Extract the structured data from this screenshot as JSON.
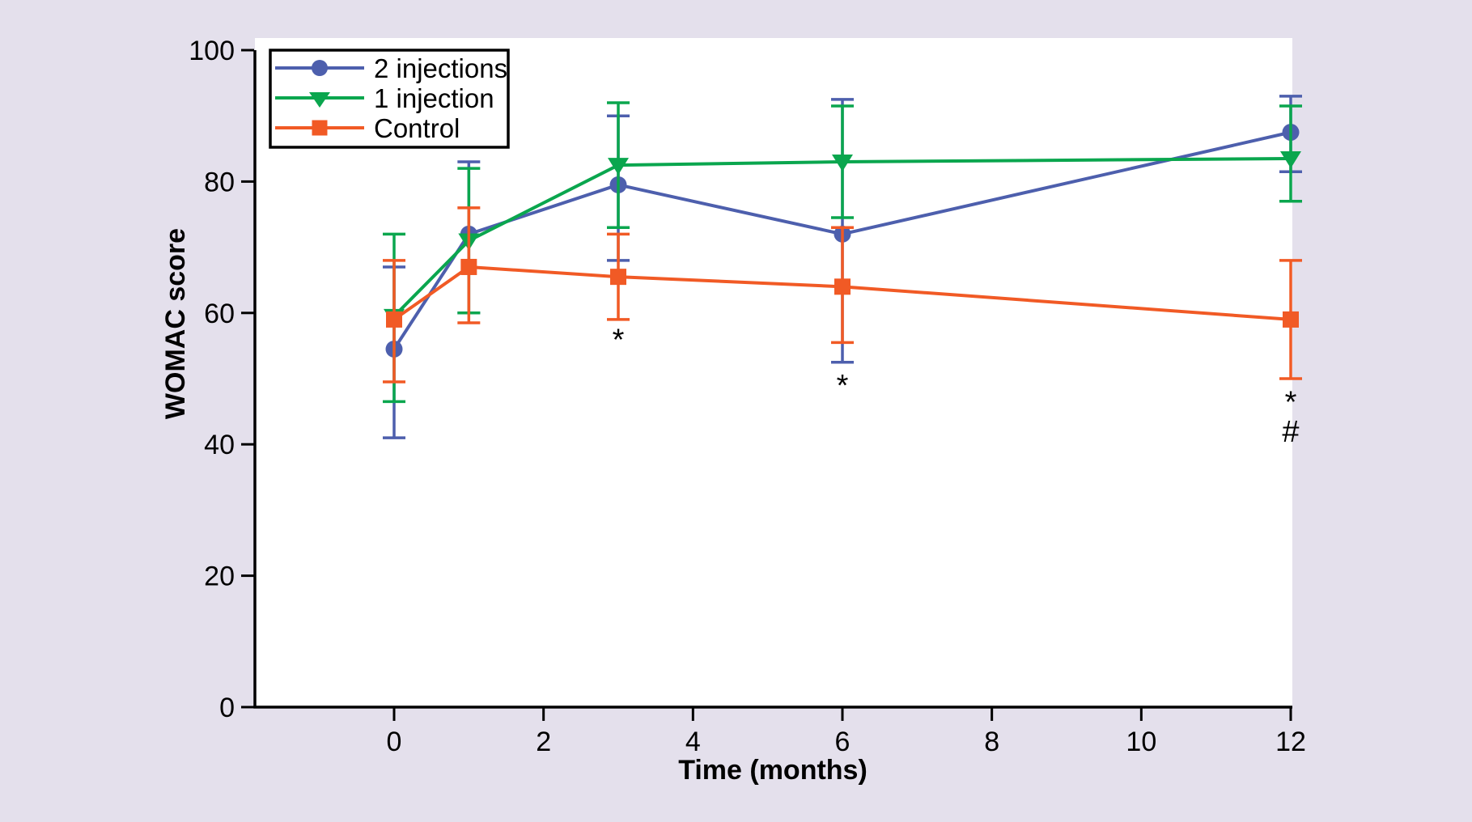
{
  "figure": {
    "background_color": "#e4e0ec",
    "plot_background": "#ffffff",
    "axis_color": "#000000",
    "legend_border_color": "#000000"
  },
  "chart_data": {
    "type": "line",
    "title": "",
    "xlabel": "Time (months)",
    "ylabel": "WOMAC score",
    "x": [
      0,
      1,
      3,
      6,
      12
    ],
    "x_ticks": [
      0,
      2,
      4,
      6,
      8,
      10,
      12
    ],
    "y_ticks": [
      0,
      20,
      40,
      60,
      80,
      100
    ],
    "xlim_months": [
      0,
      12
    ],
    "ylim": [
      0,
      100
    ],
    "grid": false,
    "legend_position": "top-left",
    "error_bars": true,
    "series": [
      {
        "name": "2 injections",
        "color": "#4d5fad",
        "marker": "circle",
        "values": [
          54.5,
          72,
          79.5,
          72,
          87.5
        ],
        "err_upper": [
          67,
          83,
          90,
          92.5,
          93
        ],
        "err_lower": [
          41,
          60,
          68,
          52.5,
          81.5
        ]
      },
      {
        "name": "1 injection",
        "color": "#0aa64e",
        "marker": "triangle-down",
        "values": [
          59.5,
          71,
          82.5,
          83,
          83.5
        ],
        "err_upper": [
          72,
          82,
          92,
          91.5,
          91.5
        ],
        "err_lower": [
          46.5,
          60,
          73,
          74.5,
          77
        ]
      },
      {
        "name": "Control",
        "color": "#f15a25",
        "marker": "square",
        "values": [
          59,
          67,
          65.5,
          64,
          59
        ],
        "err_upper": [
          68,
          76,
          72,
          73,
          68
        ],
        "err_lower": [
          49.5,
          58.5,
          59,
          55.5,
          50
        ]
      }
    ],
    "annotations": [
      {
        "text": "*",
        "x": 3,
        "y": 56
      },
      {
        "text": "*",
        "x": 6,
        "y": 49
      },
      {
        "text": "*",
        "x": 12,
        "y": 46.5
      },
      {
        "text": "#",
        "x": 12,
        "y": 42
      }
    ]
  }
}
